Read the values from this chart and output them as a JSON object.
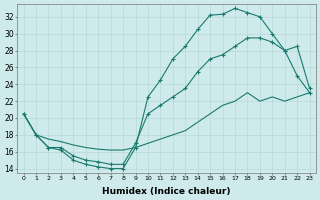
{
  "xlabel": "Humidex (Indice chaleur)",
  "background_color": "#ceeaea",
  "grid_color": "#b8d8d8",
  "line_color": "#1a7a6e",
  "xlim": [
    -0.5,
    23.5
  ],
  "ylim": [
    13.5,
    33.5
  ],
  "yticks": [
    14,
    16,
    18,
    20,
    22,
    24,
    26,
    28,
    30,
    32
  ],
  "xticks": [
    0,
    1,
    2,
    3,
    4,
    5,
    6,
    7,
    8,
    9,
    10,
    11,
    12,
    13,
    14,
    15,
    16,
    17,
    18,
    19,
    20,
    21,
    22,
    23
  ],
  "line1_x": [
    0,
    1,
    2,
    3,
    4,
    5,
    6,
    7,
    8,
    9,
    10,
    11,
    12,
    13,
    14,
    15,
    16,
    17,
    18,
    19,
    20,
    21,
    22,
    23
  ],
  "line1_y": [
    20.5,
    18.0,
    16.5,
    16.2,
    15.0,
    14.5,
    14.2,
    14.0,
    14.0,
    16.5,
    22.5,
    24.5,
    27.0,
    28.5,
    30.5,
    32.2,
    32.3,
    33.0,
    32.5,
    32.0,
    30.0,
    28.0,
    25.0,
    23.0
  ],
  "line2_x": [
    0,
    1,
    2,
    3,
    4,
    5,
    6,
    7,
    8,
    9,
    10,
    11,
    12,
    13,
    14,
    15,
    16,
    17,
    18,
    19,
    20,
    21,
    22,
    23
  ],
  "line2_y": [
    20.5,
    18.0,
    17.5,
    17.2,
    16.8,
    16.5,
    16.3,
    16.2,
    16.2,
    16.5,
    17.0,
    17.5,
    18.0,
    18.5,
    19.5,
    20.5,
    21.5,
    22.0,
    23.0,
    22.0,
    22.5,
    22.0,
    22.5,
    23.0
  ],
  "line3_x": [
    0,
    1,
    2,
    3,
    4,
    5,
    6,
    7,
    8,
    9,
    10,
    11,
    12,
    13,
    14,
    15,
    16,
    17,
    18,
    19,
    20,
    21,
    22,
    23
  ],
  "line3_y": [
    20.5,
    18.0,
    16.5,
    16.5,
    15.5,
    15.0,
    14.8,
    14.5,
    14.5,
    17.0,
    20.5,
    21.5,
    22.5,
    23.5,
    25.5,
    27.0,
    27.5,
    28.5,
    29.5,
    29.5,
    29.0,
    28.0,
    28.5,
    23.5
  ]
}
